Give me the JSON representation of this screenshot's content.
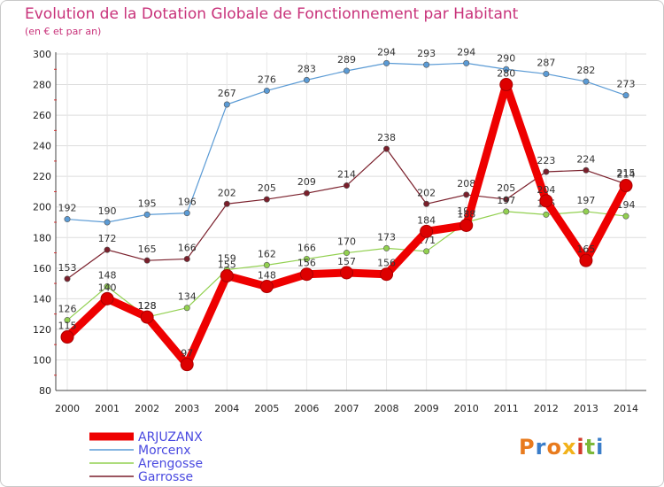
{
  "header": {
    "title": "Evolution de la Dotation Globale de Fonctionnement par Habitant",
    "subtitle": "(en € et par an)"
  },
  "logo": {
    "text": "Proxiti"
  },
  "chart_data": {
    "type": "line",
    "title": "Evolution de la Dotation Globale de Fonctionnement par Habitant",
    "subtitle": "(en € et par an)",
    "xlabel": "",
    "ylabel": "",
    "ylim": [
      80,
      300
    ],
    "yticks": [
      80,
      100,
      120,
      140,
      160,
      180,
      200,
      220,
      240,
      260,
      280,
      300
    ],
    "categories": [
      "2000",
      "2001",
      "2002",
      "2003",
      "2004",
      "2005",
      "2006",
      "2007",
      "2008",
      "2009",
      "2010",
      "2011",
      "2012",
      "2013",
      "2014"
    ],
    "grid": true,
    "legend": "bottom-left",
    "series": [
      {
        "name": "Morcenx",
        "color": "#5b9bd5",
        "values": [
          192,
          190,
          195,
          196,
          267,
          276,
          283,
          289,
          294,
          293,
          294,
          290,
          287,
          282,
          273
        ]
      },
      {
        "name": "Garrosse",
        "color": "#7a1f2b",
        "values": [
          153,
          172,
          165,
          166,
          202,
          205,
          209,
          214,
          238,
          202,
          208,
          205,
          223,
          224,
          215
        ]
      },
      {
        "name": "Arengosse",
        "color": "#92d050",
        "values": [
          126,
          148,
          128,
          134,
          159,
          162,
          166,
          170,
          173,
          171,
          190,
          197,
          195,
          197,
          194
        ]
      },
      {
        "name": "ARJUZANX",
        "color": "#ee0000",
        "values": [
          115,
          140,
          128,
          97,
          155,
          148,
          156,
          157,
          156,
          184,
          188,
          280,
          204,
          165,
          214
        ]
      }
    ],
    "legend_order": [
      "ARJUZANX",
      "Morcenx",
      "Arengosse",
      "Garrosse"
    ],
    "legend_text_color": "#4a4ae0"
  }
}
